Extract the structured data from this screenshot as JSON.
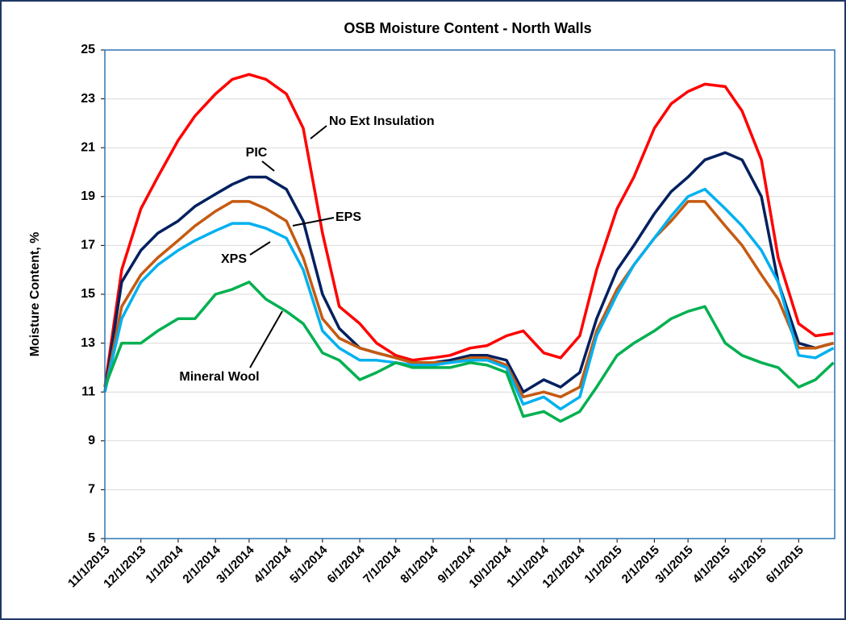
{
  "chart_data": {
    "type": "line",
    "title": "OSB Moisture Content - North Walls",
    "y_label": "Moisture Content, %",
    "x": [
      "2013-11-01",
      "2013-11-15",
      "2013-12-01",
      "2013-12-15",
      "2014-01-01",
      "2014-01-15",
      "2014-02-01",
      "2014-02-15",
      "2014-03-01",
      "2014-03-15",
      "2014-04-01",
      "2014-04-15",
      "2014-05-01",
      "2014-05-15",
      "2014-06-01",
      "2014-06-15",
      "2014-07-01",
      "2014-07-15",
      "2014-08-01",
      "2014-08-15",
      "2014-09-01",
      "2014-09-15",
      "2014-10-01",
      "2014-10-15",
      "2014-11-01",
      "2014-11-15",
      "2014-12-01",
      "2014-12-15",
      "2015-01-01",
      "2015-01-15",
      "2015-02-01",
      "2015-02-15",
      "2015-03-01",
      "2015-03-15",
      "2015-04-01",
      "2015-04-15",
      "2015-05-01",
      "2015-05-15",
      "2015-06-01",
      "2015-06-15",
      "2015-06-30"
    ],
    "series": [
      {
        "name": "No Ext Insulation",
        "color": "#ff0000",
        "values": [
          11.2,
          16.0,
          18.5,
          19.8,
          21.3,
          22.3,
          23.2,
          23.8,
          24.0,
          23.8,
          23.2,
          21.8,
          17.5,
          14.5,
          13.8,
          13.0,
          12.5,
          12.3,
          12.4,
          12.5,
          12.8,
          12.9,
          13.3,
          13.5,
          12.6,
          12.4,
          13.3,
          16.0,
          18.5,
          19.8,
          21.8,
          22.8,
          23.3,
          23.6,
          23.5,
          22.5,
          20.5,
          16.5,
          13.8,
          13.3,
          13.4
        ]
      },
      {
        "name": "PIC",
        "color": "#002060",
        "values": [
          11.0,
          15.5,
          16.8,
          17.5,
          18.0,
          18.6,
          19.1,
          19.5,
          19.8,
          19.8,
          19.3,
          18.0,
          15.0,
          13.6,
          12.8,
          12.6,
          12.4,
          12.2,
          12.2,
          12.3,
          12.5,
          12.5,
          12.3,
          11.0,
          11.5,
          11.2,
          11.8,
          14.0,
          16.0,
          17.0,
          18.3,
          19.2,
          19.8,
          20.5,
          20.8,
          20.5,
          19.0,
          15.5,
          13.0,
          12.8,
          13.0
        ]
      },
      {
        "name": "EPS",
        "color": "#c55a11",
        "values": [
          11.0,
          14.5,
          15.8,
          16.5,
          17.2,
          17.8,
          18.4,
          18.8,
          18.8,
          18.5,
          18.0,
          16.5,
          14.0,
          13.2,
          12.8,
          12.6,
          12.4,
          12.2,
          12.2,
          12.2,
          12.4,
          12.4,
          12.1,
          10.8,
          11.0,
          10.8,
          11.2,
          13.5,
          15.2,
          16.2,
          17.3,
          18.0,
          18.8,
          18.8,
          17.8,
          17.0,
          15.8,
          14.8,
          12.8,
          12.8,
          13.0
        ]
      },
      {
        "name": "XPS",
        "color": "#00b0f0",
        "values": [
          11.0,
          14.0,
          15.5,
          16.2,
          16.8,
          17.2,
          17.6,
          17.9,
          17.9,
          17.7,
          17.3,
          16.0,
          13.5,
          12.8,
          12.3,
          12.3,
          12.2,
          12.1,
          12.1,
          12.2,
          12.3,
          12.3,
          12.0,
          10.5,
          10.8,
          10.3,
          10.8,
          13.3,
          15.0,
          16.2,
          17.3,
          18.2,
          19.0,
          19.3,
          18.5,
          17.8,
          16.8,
          15.5,
          12.5,
          12.4,
          12.8
        ]
      },
      {
        "name": "Mineral Wool",
        "color": "#00b050",
        "values": [
          11.2,
          13.0,
          13.0,
          13.5,
          14.0,
          14.0,
          15.0,
          15.2,
          15.5,
          14.8,
          14.3,
          13.8,
          12.6,
          12.3,
          11.5,
          11.8,
          12.2,
          12.0,
          12.0,
          12.0,
          12.2,
          12.1,
          11.8,
          10.0,
          10.2,
          9.8,
          10.2,
          11.2,
          12.5,
          13.0,
          13.5,
          14.0,
          14.3,
          14.5,
          13.0,
          12.5,
          12.2,
          12.0,
          11.2,
          11.5,
          12.2
        ]
      }
    ],
    "xlim": [
      "2013-11-01",
      "2015-07-01"
    ],
    "xticks": [
      {
        "value": "2013-11-01",
        "label": "11/1/2013"
      },
      {
        "value": "2013-12-01",
        "label": "12/1/2013"
      },
      {
        "value": "2014-01-01",
        "label": "1/1/2014"
      },
      {
        "value": "2014-02-01",
        "label": "2/1/2014"
      },
      {
        "value": "2014-03-01",
        "label": "3/1/2014"
      },
      {
        "value": "2014-04-01",
        "label": "4/1/2014"
      },
      {
        "value": "2014-05-01",
        "label": "5/1/2014"
      },
      {
        "value": "2014-06-01",
        "label": "6/1/2014"
      },
      {
        "value": "2014-07-01",
        "label": "7/1/2014"
      },
      {
        "value": "2014-08-01",
        "label": "8/1/2014"
      },
      {
        "value": "2014-09-01",
        "label": "9/1/2014"
      },
      {
        "value": "2014-10-01",
        "label": "10/1/2014"
      },
      {
        "value": "2014-11-01",
        "label": "11/1/2014"
      },
      {
        "value": "2014-12-01",
        "label": "12/1/2014"
      },
      {
        "value": "2015-01-01",
        "label": "1/1/2015"
      },
      {
        "value": "2015-02-01",
        "label": "2/1/2015"
      },
      {
        "value": "2015-03-01",
        "label": "3/1/2015"
      },
      {
        "value": "2015-04-01",
        "label": "4/1/2015"
      },
      {
        "value": "2015-05-01",
        "label": "5/1/2015"
      },
      {
        "value": "2015-06-01",
        "label": "6/1/2015"
      }
    ],
    "ylim": [
      5,
      25
    ],
    "yticks": [
      5,
      7,
      9,
      11,
      13,
      15,
      17,
      19,
      21,
      23,
      25
    ],
    "grid": true
  }
}
